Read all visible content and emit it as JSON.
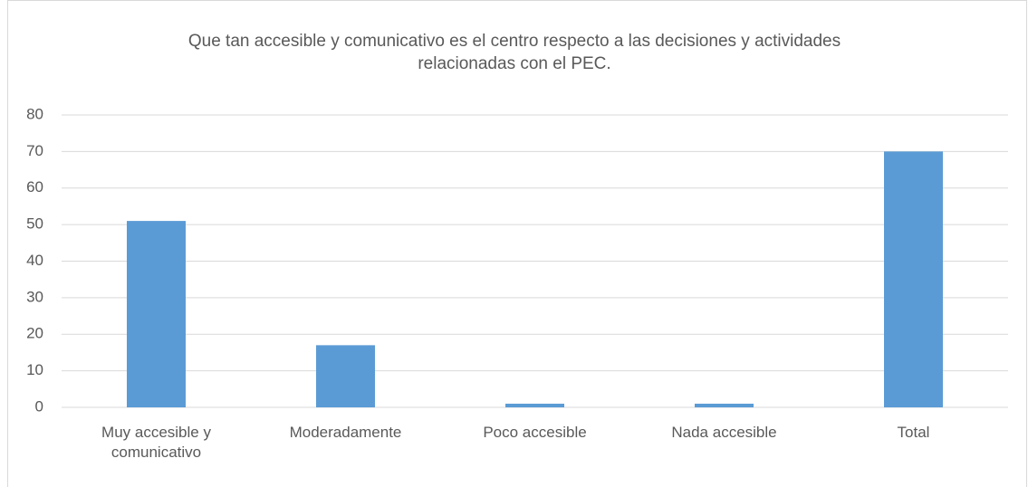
{
  "chart_data": {
    "type": "bar",
    "title": "Que tan accesible y comunicativo es el centro respecto a las decisiones y actividades relacionadas con el PEC.",
    "categories": [
      "Muy accesible y comunicativo",
      "Moderadamente",
      "Poco accesible",
      "Nada accesible",
      "Total"
    ],
    "values": [
      51,
      17,
      1,
      1,
      70
    ],
    "color": "#5b9bd5",
    "ylim": [
      0,
      80
    ],
    "yticks": [
      0,
      10,
      20,
      30,
      40,
      50,
      60,
      70,
      80
    ],
    "grid": true
  }
}
